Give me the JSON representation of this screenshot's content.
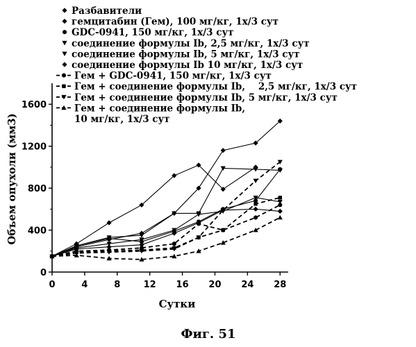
{
  "figure": {
    "caption": "Фиг. 51"
  },
  "chart_data": {
    "type": "line",
    "xlabel": "Сутки",
    "ylabel": "Объем опухоли (мм3)",
    "xlim": [
      0,
      29
    ],
    "ylim": [
      0,
      1800
    ],
    "xticks": [
      0,
      4,
      8,
      12,
      16,
      20,
      24,
      28
    ],
    "yticks": [
      0,
      400,
      800,
      1200,
      1600
    ],
    "grid": false,
    "legend_position": "top",
    "series": [
      {
        "name": "Разбавители",
        "marker": "diamond",
        "dash": "solid",
        "x": [
          0,
          3,
          7,
          11,
          15,
          18,
          21,
          25
        ],
        "y": [
          150,
          270,
          470,
          640,
          920,
          1020,
          790,
          1000
        ]
      },
      {
        "name": "гемцитабин (Гем), 100 мг/кг, 1х/3 сут",
        "marker": "diamond",
        "dash": "solid",
        "x": [
          0,
          3,
          7,
          11,
          15,
          18,
          21,
          25,
          28
        ],
        "y": [
          150,
          240,
          310,
          370,
          560,
          800,
          1160,
          1230,
          1440
        ]
      },
      {
        "name": "GDC-0941, 150 мг/кг, 1х/3 сут",
        "marker": "circle",
        "dash": "solid",
        "x": [
          0,
          3,
          7,
          11,
          15,
          18,
          21,
          25,
          28
        ],
        "y": [
          150,
          250,
          320,
          290,
          390,
          480,
          600,
          680,
          980
        ]
      },
      {
        "name": "соединение формулы Ib, 2,5 мг/кг, 1х/3 сут",
        "marker": "triangle-down",
        "dash": "solid",
        "x": [
          0,
          3,
          7,
          11,
          15,
          18,
          21,
          25,
          28
        ],
        "y": [
          150,
          250,
          330,
          350,
          560,
          560,
          990,
          980,
          970
        ]
      },
      {
        "name": "соединение формулы Ib, 5 мг/кг, 1х/3 сут",
        "marker": "triangle-down",
        "dash": "solid",
        "x": [
          0,
          3,
          7,
          11,
          15,
          18,
          21,
          25,
          28
        ],
        "y": [
          150,
          230,
          270,
          310,
          400,
          550,
          580,
          710,
          670
        ]
      },
      {
        "name": "соединение формулы Ib 10 мг/кг, 1х/3 сут",
        "marker": "diamond",
        "dash": "solid",
        "x": [
          0,
          3,
          7,
          11,
          15,
          18,
          21,
          25,
          28
        ],
        "y": [
          150,
          220,
          240,
          260,
          370,
          470,
          590,
          600,
          580
        ]
      },
      {
        "name": "Гем + GDC-0941, 150 мг/кг, 1х/3 сут",
        "marker": "circle",
        "dash": "dashed",
        "x": [
          0,
          3,
          7,
          11,
          15,
          18,
          21,
          25,
          28
        ],
        "y": [
          150,
          200,
          210,
          230,
          270,
          460,
          400,
          520,
          640
        ]
      },
      {
        "name": "Гем + соединение формулы Ib, 2,5 мг/кг, 1х/3 сут",
        "marker": "square",
        "dash": "dashed",
        "x": [
          0,
          3,
          7,
          11,
          15,
          18,
          21,
          25,
          28
        ],
        "y": [
          150,
          190,
          200,
          210,
          230,
          330,
          400,
          650,
          710
        ]
      },
      {
        "name": "Гем + соединение формулы Ib, 5 мг/кг, 1х/3 сут",
        "marker": "triangle-down",
        "dash": "dashed",
        "x": [
          0,
          3,
          7,
          11,
          15,
          18,
          21,
          25,
          28
        ],
        "y": [
          150,
          180,
          190,
          200,
          220,
          330,
          590,
          870,
          1050
        ]
      },
      {
        "name": "Гем + соединение формулы Ib, 10 мг/кг, 1х/3 сут",
        "marker": "triangle-up",
        "dash": "dashed",
        "x": [
          0,
          3,
          7,
          11,
          15,
          18,
          21,
          25,
          28
        ],
        "y": [
          150,
          160,
          130,
          120,
          150,
          200,
          280,
          400,
          520
        ]
      }
    ]
  },
  "legend": {
    "lines": [
      {
        "text": "Разбавители",
        "series": 0,
        "marker": "diamond",
        "dash": "none"
      },
      {
        "text": "гемцитабин (Гем), 100 мг/кг, 1х/3 сут",
        "series": 1,
        "marker": "diamond",
        "dash": "none"
      },
      {
        "text": "GDC-0941, 150 мг/кг, 1х/3 сут",
        "series": 2,
        "marker": "circle",
        "dash": "none"
      },
      {
        "text": "соединение формулы Ib, 2,5 мг/кг, 1х/3 сут",
        "series": 3,
        "marker": "triangle-down",
        "dash": "none"
      },
      {
        "text": "соединение формулы Ib, 5 мг/кг, 1х/3 сут",
        "series": 4,
        "marker": "triangle-down",
        "dash": "none"
      },
      {
        "text": "соединение формулы Ib 10 мг/кг, 1х/3 сут",
        "series": 5,
        "marker": "diamond",
        "dash": "none"
      },
      {
        "text": "Гем + GDC-0941, 150 мг/кг, 1х/3 сут",
        "series": 6,
        "marker": "circle",
        "dash": "dashed"
      },
      {
        "text": "Гем + соединение формулы Ib,    2,5 мг/кг, 1х/3 сут",
        "series": 7,
        "marker": "square",
        "dash": "dashed"
      },
      {
        "text": "Гем + соединение формулы Ib, 5 мг/кг, 1х/3 сут",
        "series": 8,
        "marker": "triangle-down",
        "dash": "dashed"
      },
      {
        "text": "Гем + соединение формулы Ib,",
        "series": 9,
        "marker": "triangle-up",
        "dash": "dashed"
      },
      {
        "text": "10 мг/кг, 1х/3 сут",
        "series": 9,
        "marker": "none",
        "dash": "none"
      }
    ]
  }
}
